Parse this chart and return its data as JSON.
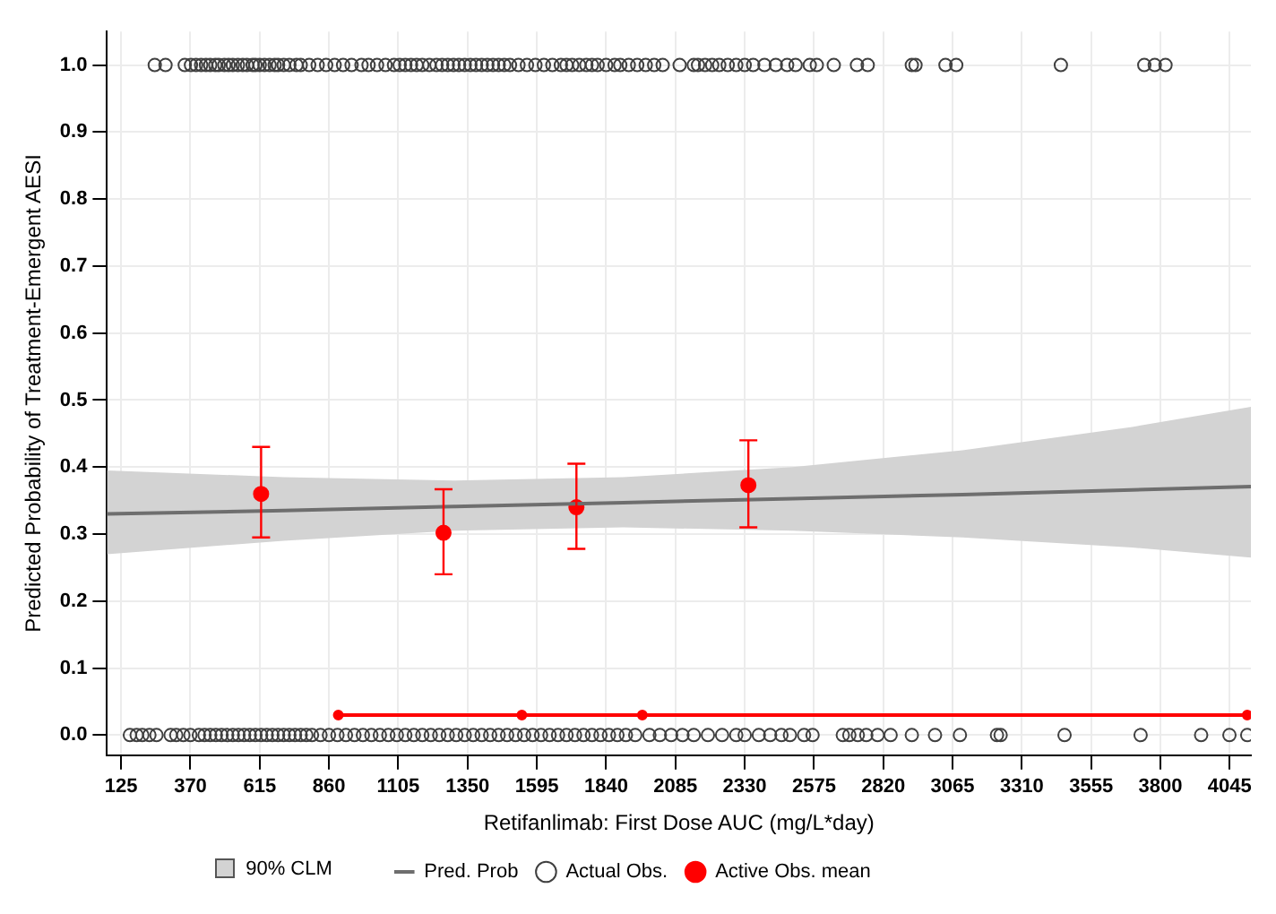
{
  "chart_data": {
    "type": "scatter",
    "xlabel": "Retifanlimab: First Dose AUC (mg/L*day)",
    "ylabel": "Predicted Probability of Treatment-Emergent AESI",
    "xlim": [
      75,
      4120
    ],
    "ylim": [
      -0.03,
      1.05
    ],
    "xticks": [
      125,
      370,
      615,
      860,
      1105,
      1350,
      1595,
      1840,
      2085,
      2330,
      2575,
      2820,
      3065,
      3310,
      3555,
      3800,
      4045
    ],
    "yticks": [
      {
        "value": 0,
        "label": "0.0"
      },
      {
        "value": 0.1,
        "label": "0.1"
      },
      {
        "value": 0.2,
        "label": "0.2"
      },
      {
        "value": 0.3,
        "label": "0.3"
      },
      {
        "value": 0.4,
        "label": "0.4"
      },
      {
        "value": 0.5,
        "label": "0.5"
      },
      {
        "value": 0.6,
        "label": "0.6"
      },
      {
        "value": 0.7,
        "label": "0.7"
      },
      {
        "value": 0.8,
        "label": "0.8"
      },
      {
        "value": 0.9,
        "label": "0.9"
      },
      {
        "value": 1,
        "label": "1.0"
      }
    ],
    "grid": true,
    "legend": "bottom",
    "annotations": [
      "90% CLM"
    ],
    "series": [
      {
        "name": "Pred. Prob",
        "type": "line",
        "color": "#6e6e6e",
        "marker": "none",
        "x": [
          75,
          700,
          1300,
          1900,
          2500,
          3100,
          3700,
          4120
        ],
        "values": [
          0.33,
          0.335,
          0.341,
          0.347,
          0.353,
          0.359,
          0.366,
          0.371
        ],
        "lower": [
          0.27,
          0.29,
          0.305,
          0.31,
          0.305,
          0.295,
          0.28,
          0.265
        ],
        "upper": [
          0.395,
          0.385,
          0.38,
          0.385,
          0.4,
          0.425,
          0.46,
          0.49
        ]
      },
      {
        "name": "Actual Obs.",
        "color": "#404040",
        "marker": "circle",
        "x": [
          244,
          282,
          350,
          372,
          390,
          408,
          425,
          440,
          458,
          470,
          490,
          505,
          520,
          538,
          555,
          570,
          590,
          600,
          615,
          632,
          650,
          668,
          680,
          700,
          720,
          745,
          760,
          790,
          820,
          850,
          880,
          910,
          940,
          975,
          1000,
          1030,
          1060,
          1090,
          1110,
          1130,
          1150,
          1170,
          1190,
          1215,
          1240,
          1260,
          1280,
          1300,
          1320,
          1340,
          1360,
          1380,
          1400,
          1420,
          1440,
          1460,
          1480,
          1500,
          1530,
          1560,
          1590,
          1620,
          1650,
          1680,
          1700,
          1720,
          1745,
          1770,
          1790,
          1810,
          1840,
          1870,
          1890,
          1920,
          1950,
          1980,
          2010,
          2040,
          2100,
          2150,
          2165,
          2190,
          2215,
          2240,
          2270,
          2300,
          2330,
          2360,
          2400,
          2440,
          2480,
          2510,
          2560,
          2585,
          2645,
          2727,
          2765,
          2921,
          2934,
          3040,
          3078,
          3448,
          3743,
          3780,
          3818,
          156,
          180,
          200,
          225,
          250,
          300,
          320,
          345,
          370,
          400,
          420,
          440,
          460,
          480,
          500,
          520,
          540,
          560,
          580,
          600,
          620,
          640,
          660,
          680,
          700,
          720,
          740,
          760,
          780,
          800,
          830,
          860,
          890,
          920,
          950,
          980,
          1010,
          1040,
          1070,
          1100,
          1130,
          1160,
          1190,
          1220,
          1250,
          1280,
          1310,
          1340,
          1370,
          1400,
          1430,
          1460,
          1490,
          1520,
          1550,
          1580,
          1610,
          1640,
          1670,
          1700,
          1730,
          1760,
          1790,
          1820,
          1850,
          1880,
          1910,
          1943,
          1993,
          2030,
          2070,
          2110,
          2150,
          2200,
          2250,
          2300,
          2330,
          2380,
          2420,
          2460,
          2490,
          2540,
          2570,
          2677,
          2700,
          2730,
          2760,
          2800,
          2846,
          2921,
          3003,
          3091,
          3222,
          3235,
          3461,
          3730,
          3944,
          4044,
          4107
        ],
        "values": [
          1,
          1,
          1,
          1,
          1,
          1,
          1,
          1,
          1,
          1,
          1,
          1,
          1,
          1,
          1,
          1,
          1,
          1,
          1,
          1,
          1,
          1,
          1,
          1,
          1,
          1,
          1,
          1,
          1,
          1,
          1,
          1,
          1,
          1,
          1,
          1,
          1,
          1,
          1,
          1,
          1,
          1,
          1,
          1,
          1,
          1,
          1,
          1,
          1,
          1,
          1,
          1,
          1,
          1,
          1,
          1,
          1,
          1,
          1,
          1,
          1,
          1,
          1,
          1,
          1,
          1,
          1,
          1,
          1,
          1,
          1,
          1,
          1,
          1,
          1,
          1,
          1,
          1,
          1,
          1,
          1,
          1,
          1,
          1,
          1,
          1,
          1,
          1,
          1,
          1,
          1,
          1,
          1,
          1,
          1,
          1,
          1,
          1,
          1,
          1,
          1,
          1,
          1,
          1,
          1,
          0,
          0,
          0,
          0,
          0,
          0,
          0,
          0,
          0,
          0,
          0,
          0,
          0,
          0,
          0,
          0,
          0,
          0,
          0,
          0,
          0,
          0,
          0,
          0,
          0,
          0,
          0,
          0,
          0,
          0,
          0,
          0,
          0,
          0,
          0,
          0,
          0,
          0,
          0,
          0,
          0,
          0,
          0,
          0,
          0,
          0,
          0,
          0,
          0,
          0,
          0,
          0,
          0,
          0,
          0,
          0,
          0,
          0,
          0,
          0,
          0,
          0,
          0,
          0,
          0,
          0,
          0,
          0,
          0,
          0,
          0,
          0,
          0,
          0,
          0,
          0,
          0,
          0,
          0,
          0,
          0,
          0,
          0,
          0,
          0,
          0,
          0,
          0,
          0,
          0,
          0,
          0,
          0,
          0,
          0,
          0,
          0,
          0,
          0
        ]
      },
      {
        "name": "Active Obs. mean",
        "color": "#ff0000",
        "marker": "circle",
        "x": [
          620,
          1265,
          1735,
          2343
        ],
        "values": [
          0.36,
          0.302,
          0.34,
          0.373
        ],
        "errors": [
          [
            0.295,
            0.43
          ],
          [
            0.24,
            0.367
          ],
          [
            0.278,
            0.405
          ],
          [
            0.31,
            0.44
          ]
        ]
      },
      {
        "type": "line",
        "color": "#ff0000",
        "marker": "circle",
        "x": [
          893,
          1542,
          1968,
          4107
        ],
        "values": [
          0.03,
          0.03,
          0.03,
          0.03
        ]
      }
    ]
  }
}
